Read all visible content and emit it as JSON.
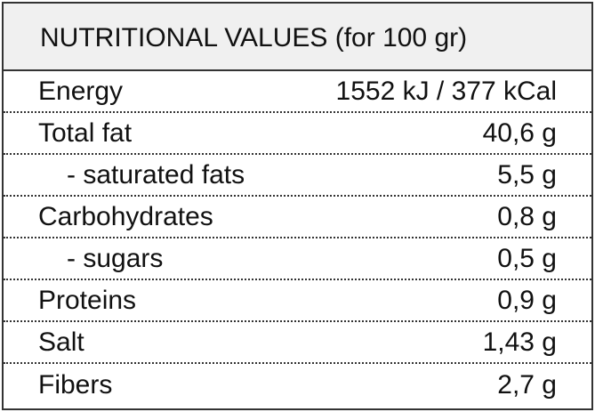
{
  "header": {
    "title": "NUTRITIONAL VALUES (for 100 gr)"
  },
  "table": {
    "rows": [
      [
        "Energy",
        "1552 kJ / 377 kCal"
      ],
      [
        "Total fat",
        "40,6 g"
      ],
      [
        "- saturated fats",
        "5,5 g"
      ],
      [
        "Carbohydrates",
        "0,8 g"
      ],
      [
        "- sugars",
        "0,5 g"
      ],
      [
        "Proteins",
        "0,9 g"
      ],
      [
        "Salt",
        "1,43 g"
      ],
      [
        "Fibers",
        "2,7 g"
      ]
    ]
  }
}
